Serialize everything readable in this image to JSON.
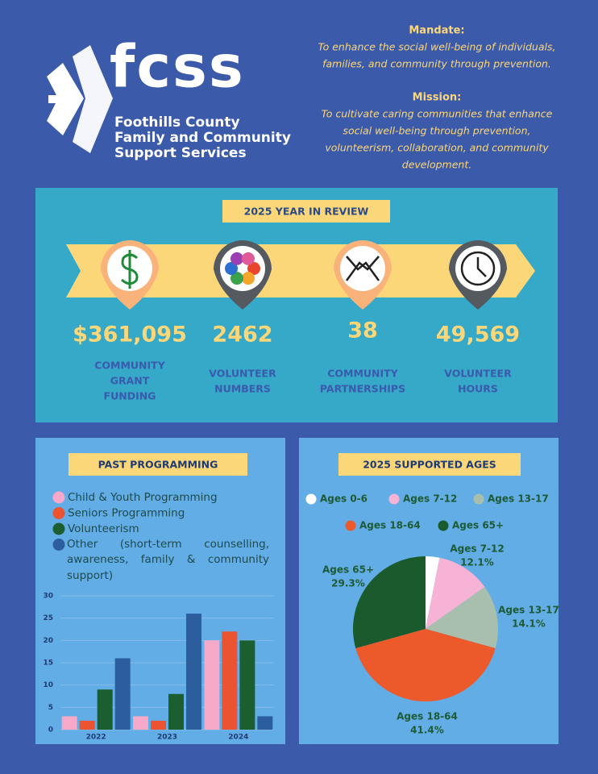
{
  "header": {
    "logo": "fcss",
    "org_lines": [
      "Foothills County",
      "Family and Community",
      "Support Services"
    ],
    "mandate_label": "Mandate:",
    "mandate_lines": [
      "To enhance the social well-being of individuals,",
      "families, and community through prevention."
    ],
    "mission_label": "Mission:",
    "mission_lines": [
      "To cultivate caring communities that enhance",
      "social well-being through prevention,",
      "volunteerism, collaboration, and community",
      "development."
    ]
  },
  "review": {
    "title": "2025 YEAR IN REVIEW",
    "items": [
      {
        "value": "$361,095",
        "label_lines": [
          "COMMUNITY",
          "GRANT",
          "FUNDING"
        ]
      },
      {
        "value": "2462",
        "label_lines": [
          "VOLUNTEER",
          "NUMBERS"
        ]
      },
      {
        "value": "38",
        "label_lines": [
          "COMMUNITY",
          "PARTNERSHIPS"
        ]
      },
      {
        "value": "49,569",
        "label_lines": [
          "VOLUNTEER",
          "HOURS"
        ]
      }
    ]
  },
  "chart_data": [
    {
      "type": "bar",
      "title": "PAST PROGRAMMING",
      "categories": [
        "2022",
        "2023",
        "2024"
      ],
      "series": [
        {
          "name": "Child & Youth Programming",
          "color": "#f6a9c9",
          "values": [
            3,
            3,
            20
          ]
        },
        {
          "name": "Seniors Programming",
          "color": "#ec5330",
          "values": [
            2,
            2,
            22
          ]
        },
        {
          "name": "Volunteerism",
          "color": "#1b5e2f",
          "values": [
            9,
            8,
            20
          ]
        },
        {
          "name": "Other (short-term counselling, awareness, family & community support)",
          "color": "#2c5e9e",
          "values": [
            16,
            26,
            3
          ]
        }
      ],
      "ylim": [
        0,
        30
      ],
      "yticks": [
        0,
        5,
        10,
        15,
        20,
        25,
        30
      ],
      "grid": true
    },
    {
      "type": "pie",
      "title": "2025 SUPPORTED AGES",
      "categories": [
        "Ages 0-6",
        "Ages 7-12",
        "Ages 13-17",
        "Ages 18-64",
        "Ages 65+"
      ],
      "values": [
        3.1,
        12.1,
        14.1,
        41.4,
        29.3
      ],
      "value_labels": [
        null,
        "12.1%",
        "14.1%",
        "41.4%",
        "29.3%"
      ],
      "colors": [
        "#ffffff",
        "#f6b3d6",
        "#a8bfae",
        "#ec5a2b",
        "#1b5a2d"
      ]
    }
  ]
}
